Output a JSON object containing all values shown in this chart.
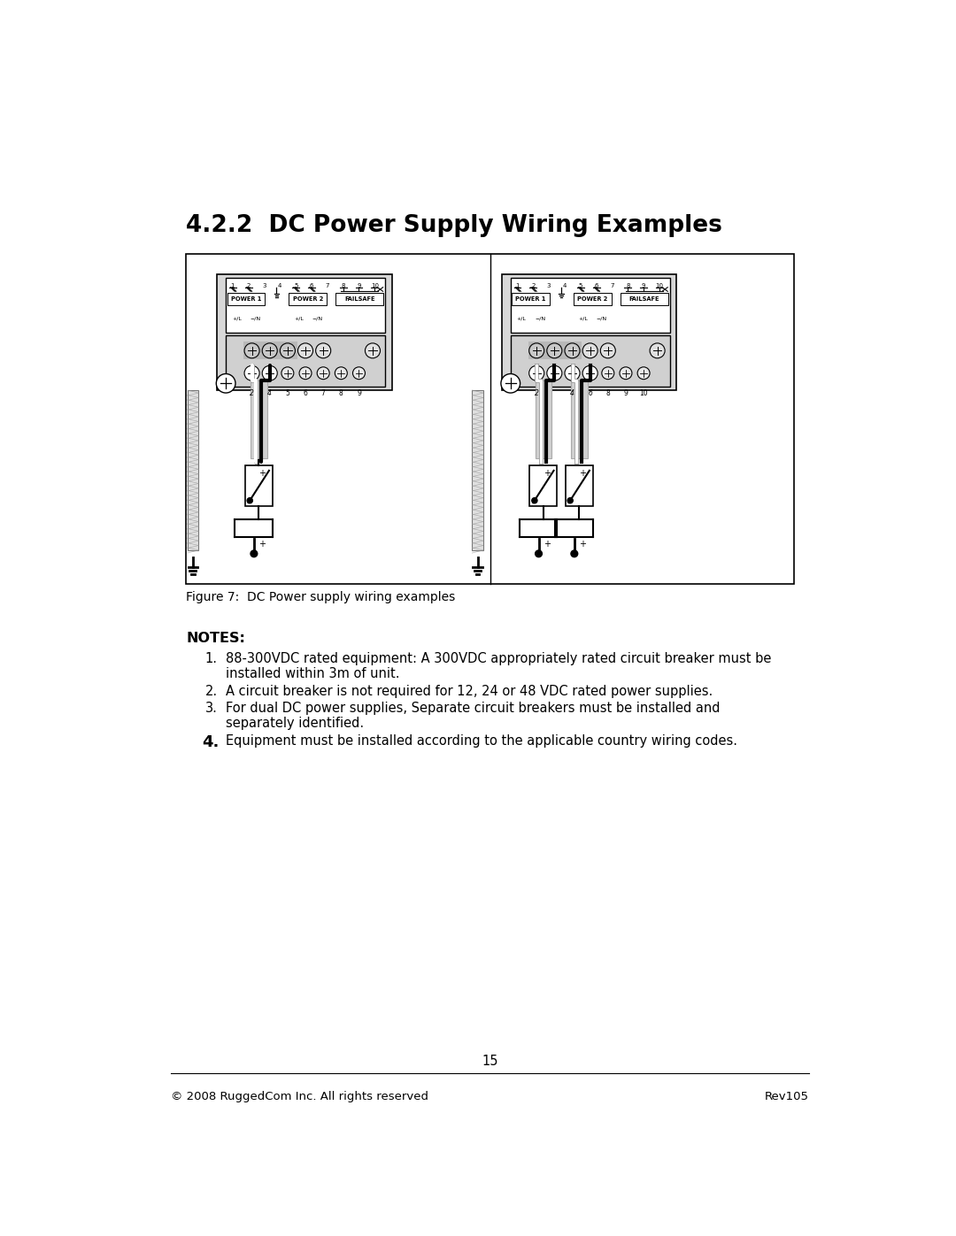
{
  "title": "4.2.2  DC Power Supply Wiring Examples",
  "figure_caption": "Figure 7:  DC Power supply wiring examples",
  "notes_title": "NOTES:",
  "note1a": "88-300VDC rated equipment: A 300VDC appropriately rated circuit breaker must be",
  "note1b": "installed within 3m of unit.",
  "note2": "A circuit breaker is not required for 12, 24 or 48 VDC rated power supplies.",
  "note3a": "For dual DC power supplies, Separate circuit breakers must be installed and",
  "note3b": "separately identified.",
  "note4": "Equipment must be installed according to the applicable country wiring codes.",
  "footer_left": "© 2008 RuggedCom Inc. All rights reserved",
  "footer_right": "Rev105",
  "footer_page": "15",
  "bg_color": "#ffffff"
}
